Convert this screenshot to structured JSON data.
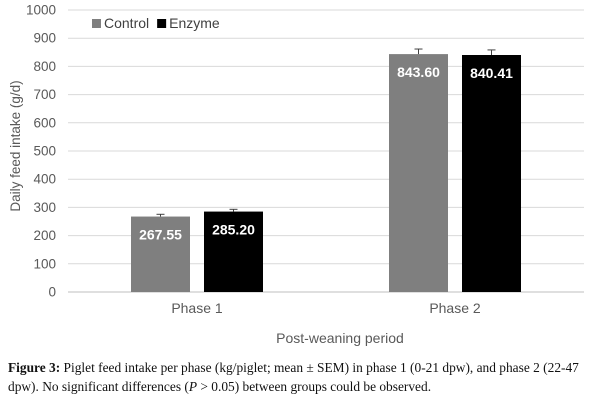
{
  "chart_data": {
    "type": "bar",
    "ylabel": "Daily feed intake (g/d)",
    "xlabel": "Post-weaning period",
    "ylim": [
      0,
      1000
    ],
    "yticks": [
      "0",
      "100",
      "200",
      "300",
      "400",
      "500",
      "600",
      "700",
      "800",
      "900",
      "1000"
    ],
    "ytick_values": [
      0,
      100,
      200,
      300,
      400,
      500,
      600,
      700,
      800,
      900,
      1000
    ],
    "categories": [
      "Phase 1",
      "Phase 2"
    ],
    "series": [
      {
        "name": "Control",
        "values": [
          267.55,
          843.6
        ],
        "labels": [
          "267.55",
          "843.60"
        ],
        "errors": [
          8,
          18
        ],
        "color": "#7f7f7f"
      },
      {
        "name": "Enzyme",
        "values": [
          285.2,
          840.41
        ],
        "labels": [
          "285.20",
          "840.41"
        ],
        "errors": [
          8,
          18
        ],
        "color": "#000000"
      }
    ],
    "legend_position": "top-left",
    "grid": true
  },
  "caption": {
    "label": "Figure 3:",
    "text_before_p": " Piglet feed intake per phase (kg/piglet; mean ± SEM) in phase 1 (0-21 dpw), and phase 2 (22-47 dpw). No significant differences (",
    "p_symbol": "P",
    "text_after_p": " > 0.05) between groups could be observed."
  }
}
